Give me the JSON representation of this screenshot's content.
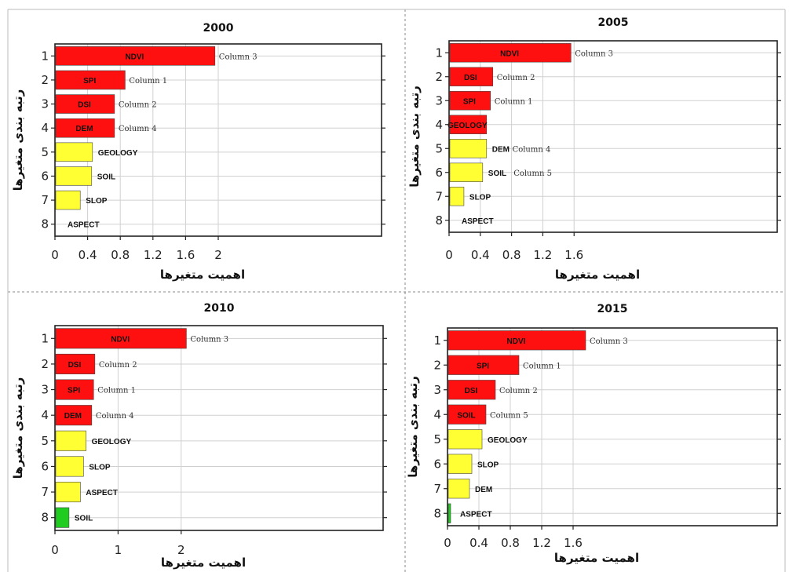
{
  "colors": {
    "red": "#ff1010",
    "yellow": "#ffff33",
    "green": "#1fcc1f",
    "frame": "#222222",
    "grid": "#d0d0d0"
  },
  "chart_data": [
    {
      "type": "bar",
      "orientation": "horizontal",
      "title": "2000",
      "xlabel": "اهمیت متغیرها",
      "ylabel": "رتبه بندی متغیرها",
      "ranks": [
        1,
        2,
        3,
        4,
        5,
        6,
        7,
        8
      ],
      "x_ticks": [
        "0",
        "0.4",
        "0.8",
        "1.2",
        "1.6",
        "2"
      ],
      "x_tick_values": [
        0,
        0.4,
        0.8,
        1.2,
        1.6,
        2
      ],
      "xlim": [
        0,
        4.0
      ],
      "grid": true,
      "bars": [
        {
          "rank": 1,
          "label": "NDVI",
          "value": 1.95,
          "color": "red",
          "note": "Column 3"
        },
        {
          "rank": 2,
          "label": "SPI",
          "value": 0.85,
          "color": "red",
          "note": "Column 1"
        },
        {
          "rank": 3,
          "label": "DSI",
          "value": 0.72,
          "color": "red",
          "note": "Column 2"
        },
        {
          "rank": 4,
          "label": "DEM",
          "value": 0.72,
          "color": "red",
          "note": "Column 4"
        },
        {
          "rank": 5,
          "label": "GEOLOGY",
          "value": 0.45,
          "color": "yellow",
          "note": ""
        },
        {
          "rank": 6,
          "label": "SOIL",
          "value": 0.44,
          "color": "yellow",
          "note": ""
        },
        {
          "rank": 7,
          "label": "SLOP",
          "value": 0.3,
          "color": "yellow",
          "note": ""
        },
        {
          "rank": 8,
          "label": "ASPECT",
          "value": 0.0,
          "color": "yellow",
          "note": ""
        }
      ]
    },
    {
      "type": "bar",
      "orientation": "horizontal",
      "title": "2005",
      "xlabel": "اهمیت متغیرها",
      "ylabel": "رتبه بندی متغیرها",
      "ranks": [
        1,
        2,
        3,
        4,
        5,
        6,
        7,
        8
      ],
      "x_ticks": [
        "0",
        "0.4",
        "0.8",
        "1.2",
        "1.6"
      ],
      "x_tick_values": [
        0,
        0.4,
        0.8,
        1.2,
        1.6
      ],
      "xlim": [
        0,
        4.2
      ],
      "grid": true,
      "bars": [
        {
          "rank": 1,
          "label": "NDVI",
          "value": 1.55,
          "color": "red",
          "note": "Column 3"
        },
        {
          "rank": 2,
          "label": "DSI",
          "value": 0.55,
          "color": "red",
          "note": "Column 2"
        },
        {
          "rank": 3,
          "label": "SPI",
          "value": 0.52,
          "color": "red",
          "note": "Column 1"
        },
        {
          "rank": 4,
          "label": "GEOLOGY",
          "value": 0.47,
          "color": "red",
          "note": ""
        },
        {
          "rank": 5,
          "label": "DEM",
          "value": 0.47,
          "color": "yellow",
          "note": "Column 4"
        },
        {
          "rank": 6,
          "label": "SOIL",
          "value": 0.42,
          "color": "yellow",
          "note": "Column 5"
        },
        {
          "rank": 7,
          "label": "SLOP",
          "value": 0.18,
          "color": "yellow",
          "note": ""
        },
        {
          "rank": 8,
          "label": "ASPECT",
          "value": 0.0,
          "color": "yellow",
          "note": ""
        }
      ]
    },
    {
      "type": "bar",
      "orientation": "horizontal",
      "title": "2010",
      "xlabel": "اهمیت متغیرها",
      "ylabel": "رتبه بندی متغیرها",
      "ranks": [
        1,
        2,
        3,
        4,
        5,
        6,
        7,
        8
      ],
      "x_ticks": [
        "0",
        "1",
        "2"
      ],
      "x_tick_values": [
        0,
        1,
        2
      ],
      "xlim": [
        0,
        5.2
      ],
      "grid": true,
      "bars": [
        {
          "rank": 1,
          "label": "NDVI",
          "value": 2.07,
          "color": "red",
          "note": "Column 3"
        },
        {
          "rank": 2,
          "label": "DSI",
          "value": 0.62,
          "color": "red",
          "note": "Column 2"
        },
        {
          "rank": 3,
          "label": "SPI",
          "value": 0.6,
          "color": "red",
          "note": "Column 1"
        },
        {
          "rank": 4,
          "label": "DEM",
          "value": 0.57,
          "color": "red",
          "note": "Column 4"
        },
        {
          "rank": 5,
          "label": "GEOLOGY",
          "value": 0.48,
          "color": "yellow",
          "note": ""
        },
        {
          "rank": 6,
          "label": "SLOP",
          "value": 0.44,
          "color": "yellow",
          "note": ""
        },
        {
          "rank": 7,
          "label": "ASPECT",
          "value": 0.39,
          "color": "yellow",
          "note": ""
        },
        {
          "rank": 8,
          "label": "SOIL",
          "value": 0.21,
          "color": "green",
          "note": ""
        }
      ]
    },
    {
      "type": "bar",
      "orientation": "horizontal",
      "title": "2015",
      "xlabel": "اهمیت متغیرها",
      "ylabel": "رتبه بندی متغیرها",
      "ranks": [
        1,
        2,
        3,
        4,
        5,
        6,
        7,
        8
      ],
      "x_ticks": [
        "0",
        "0.4",
        "0.8",
        "1.2",
        "1.6"
      ],
      "x_tick_values": [
        0,
        0.4,
        0.8,
        1.2,
        1.6
      ],
      "xlim": [
        0,
        4.2
      ],
      "grid": true,
      "bars": [
        {
          "rank": 1,
          "label": "NDVI",
          "value": 1.75,
          "color": "red",
          "note": "Column 3"
        },
        {
          "rank": 2,
          "label": "SPI",
          "value": 0.9,
          "color": "red",
          "note": "Column 1"
        },
        {
          "rank": 3,
          "label": "DSI",
          "value": 0.6,
          "color": "red",
          "note": "Column 2"
        },
        {
          "rank": 4,
          "label": "SOIL",
          "value": 0.48,
          "color": "red",
          "note": "Column 5"
        },
        {
          "rank": 5,
          "label": "GEOLOGY",
          "value": 0.43,
          "color": "yellow",
          "note": ""
        },
        {
          "rank": 6,
          "label": "SLOP",
          "value": 0.3,
          "color": "yellow",
          "note": ""
        },
        {
          "rank": 7,
          "label": "DEM",
          "value": 0.27,
          "color": "yellow",
          "note": ""
        },
        {
          "rank": 8,
          "label": "ASPECT",
          "value": 0.03,
          "color": "green",
          "note": ""
        }
      ]
    }
  ]
}
